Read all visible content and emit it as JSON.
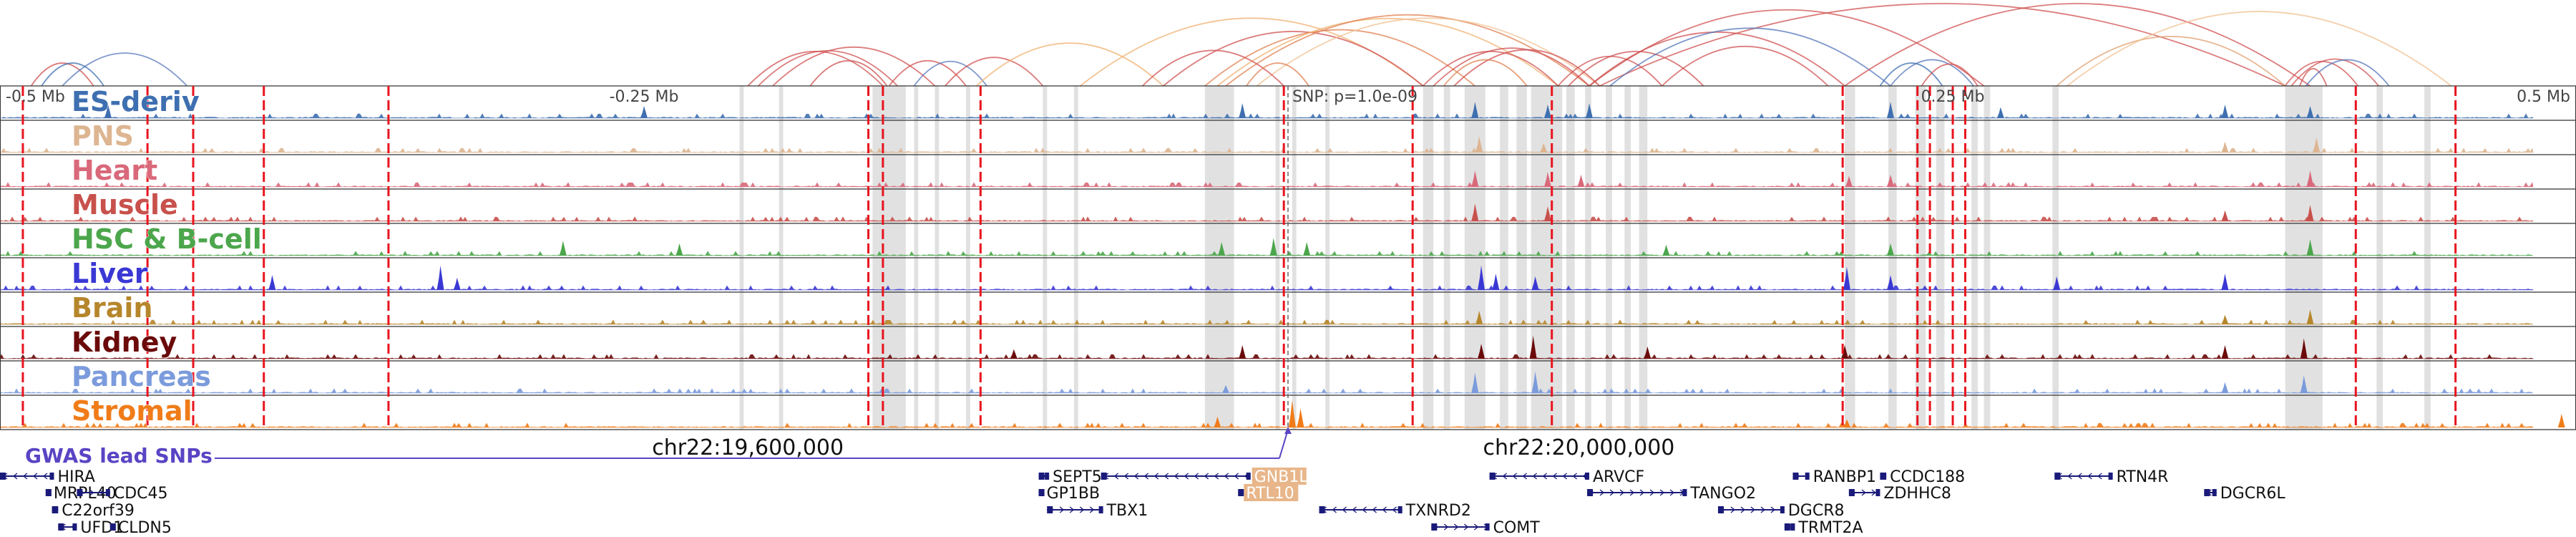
{
  "chart_data": {
    "type": "genome_track_plot",
    "title": "",
    "xlabel": "",
    "ylabel": "",
    "xlim": [
      19240000,
      20480000
    ],
    "offset_axis": {
      "labels": [
        "-0.5 Mb",
        "-0.25 Mb",
        "0.25 Mb",
        "0.5 Mb"
      ],
      "positions": [
        19240000,
        19550000,
        20180000,
        20480000
      ]
    },
    "lead_snp": {
      "position": 19860000,
      "label": "SNP: p=1.0e-09",
      "track_label": "GWAS lead SNPs"
    },
    "coordinate_labels": [
      {
        "label": "chr22:19,600,000",
        "position": 19600000
      },
      {
        "label": "chr22:20,000,000",
        "position": 20000000
      }
    ],
    "tracks": [
      {
        "name": "ES-deriv",
        "color": "#3e6fb0"
      },
      {
        "name": "PNS",
        "color": "#ddb591"
      },
      {
        "name": "Heart",
        "color": "#d9697a"
      },
      {
        "name": "Muscle",
        "color": "#c8514c"
      },
      {
        "name": "HSC & B-cell",
        "color": "#4ca64c"
      },
      {
        "name": "Liver",
        "color": "#3a38d4"
      },
      {
        "name": "Brain",
        "color": "#b6862b"
      },
      {
        "name": "Kidney",
        "color": "#6b0a0a"
      },
      {
        "name": "Pancreas",
        "color": "#7b9bdc"
      },
      {
        "name": "Stromal",
        "color": "#f07c19"
      }
    ],
    "red_dashed_boundaries": [
      19251000,
      19311000,
      19333000,
      19367000,
      19427000,
      19658000,
      19665000,
      19712000,
      19858000,
      19920000,
      19987000,
      20127000,
      20163000,
      20169000,
      20180000,
      20186000,
      20374000,
      20422000
    ],
    "highlight_regions": [
      [
        19596000,
        19598000
      ],
      [
        19615000,
        19617000
      ],
      [
        19660000,
        19668000
      ],
      [
        19668000,
        19676000
      ],
      [
        19680000,
        19682000
      ],
      [
        19690000,
        19692000
      ],
      [
        19705000,
        19707000
      ],
      [
        19742000,
        19744000
      ],
      [
        19757000,
        19759000
      ],
      [
        19820000,
        19826000
      ],
      [
        19826000,
        19831000
      ],
      [
        19831000,
        19834000
      ],
      [
        19854000,
        19856000
      ],
      [
        19862000,
        19864000
      ],
      [
        19878000,
        19880000
      ],
      [
        19925000,
        19930000
      ],
      [
        19935000,
        19938000
      ],
      [
        19945000,
        19950000
      ],
      [
        19950000,
        19955000
      ],
      [
        19962000,
        19966000
      ],
      [
        19970000,
        19975000
      ],
      [
        19977000,
        19980000
      ],
      [
        19980000,
        19984000
      ],
      [
        19984000,
        19988000
      ],
      [
        19988000,
        19992000
      ],
      [
        19994000,
        19998000
      ],
      [
        20003000,
        20006000
      ],
      [
        20013000,
        20016000
      ],
      [
        20022000,
        20025000
      ],
      [
        20029000,
        20033000
      ],
      [
        20128000,
        20133000
      ],
      [
        20149000,
        20153000
      ],
      [
        20162000,
        20167000
      ],
      [
        20172000,
        20176000
      ],
      [
        20189000,
        20192000
      ],
      [
        20195000,
        20198000
      ],
      [
        20228000,
        20231000
      ],
      [
        20340000,
        20347000
      ],
      [
        20347000,
        20352000
      ],
      [
        20352000,
        20358000
      ],
      [
        20384000,
        20387000
      ],
      [
        20407000,
        20410000
      ]
    ],
    "peaks": [
      {
        "track": "ES-deriv",
        "position": 19292000,
        "height": 0.5
      },
      {
        "track": "ES-deriv",
        "position": 19550000,
        "height": 0.45
      },
      {
        "track": "ES-deriv",
        "position": 19838000,
        "height": 0.55
      },
      {
        "track": "ES-deriv",
        "position": 19950000,
        "height": 0.6
      },
      {
        "track": "ES-deriv",
        "position": 19985000,
        "height": 0.5
      },
      {
        "track": "ES-deriv",
        "position": 20005000,
        "height": 0.55
      },
      {
        "track": "ES-deriv",
        "position": 20150000,
        "height": 0.6
      },
      {
        "track": "ES-deriv",
        "position": 20203000,
        "height": 0.4
      },
      {
        "track": "ES-deriv",
        "position": 20311000,
        "height": 0.5
      },
      {
        "track": "ES-deriv",
        "position": 20352000,
        "height": 0.45
      },
      {
        "track": "PNS",
        "position": 19952000,
        "height": 0.6
      },
      {
        "track": "PNS",
        "position": 19983000,
        "height": 0.35
      },
      {
        "track": "PNS",
        "position": 20311000,
        "height": 0.4
      },
      {
        "track": "PNS",
        "position": 20355000,
        "height": 0.55
      },
      {
        "track": "Heart",
        "position": 19950000,
        "height": 0.6
      },
      {
        "track": "Heart",
        "position": 19985000,
        "height": 0.55
      },
      {
        "track": "Heart",
        "position": 20001000,
        "height": 0.45
      },
      {
        "track": "Heart",
        "position": 20130000,
        "height": 0.4
      },
      {
        "track": "Heart",
        "position": 20150000,
        "height": 0.45
      },
      {
        "track": "Heart",
        "position": 20352000,
        "height": 0.6
      },
      {
        "track": "Muscle",
        "position": 19950000,
        "height": 0.65
      },
      {
        "track": "Muscle",
        "position": 19985000,
        "height": 0.55
      },
      {
        "track": "Muscle",
        "position": 20311000,
        "height": 0.4
      },
      {
        "track": "Muscle",
        "position": 20352000,
        "height": 0.6
      },
      {
        "track": "HSC & B-cell",
        "position": 19511000,
        "height": 0.55
      },
      {
        "track": "HSC & B-cell",
        "position": 19567000,
        "height": 0.45
      },
      {
        "track": "HSC & B-cell",
        "position": 19828000,
        "height": 0.5
      },
      {
        "track": "HSC & B-cell",
        "position": 19853000,
        "height": 0.65
      },
      {
        "track": "HSC & B-cell",
        "position": 19869000,
        "height": 0.5
      },
      {
        "track": "HSC & B-cell",
        "position": 20042000,
        "height": 0.4
      },
      {
        "track": "HSC & B-cell",
        "position": 20150000,
        "height": 0.45
      },
      {
        "track": "HSC & B-cell",
        "position": 20352000,
        "height": 0.6
      },
      {
        "track": "Liver",
        "position": 19371000,
        "height": 0.55
      },
      {
        "track": "Liver",
        "position": 19452000,
        "height": 0.9
      },
      {
        "track": "Liver",
        "position": 19460000,
        "height": 0.45
      },
      {
        "track": "Liver",
        "position": 19953000,
        "height": 0.9
      },
      {
        "track": "Liver",
        "position": 19960000,
        "height": 0.6
      },
      {
        "track": "Liver",
        "position": 19979000,
        "height": 0.5
      },
      {
        "track": "Liver",
        "position": 20129000,
        "height": 0.85
      },
      {
        "track": "Liver",
        "position": 20150000,
        "height": 0.55
      },
      {
        "track": "Liver",
        "position": 20230000,
        "height": 0.5
      },
      {
        "track": "Liver",
        "position": 20311000,
        "height": 0.6
      },
      {
        "track": "Brain",
        "position": 19952000,
        "height": 0.5
      },
      {
        "track": "Brain",
        "position": 20311000,
        "height": 0.35
      },
      {
        "track": "Brain",
        "position": 20352000,
        "height": 0.55
      },
      {
        "track": "Kidney",
        "position": 19728000,
        "height": 0.35
      },
      {
        "track": "Kidney",
        "position": 19838000,
        "height": 0.5
      },
      {
        "track": "Kidney",
        "position": 19953000,
        "height": 0.55
      },
      {
        "track": "Kidney",
        "position": 19978000,
        "height": 0.85
      },
      {
        "track": "Kidney",
        "position": 20033000,
        "height": 0.45
      },
      {
        "track": "Kidney",
        "position": 20128000,
        "height": 0.5
      },
      {
        "track": "Kidney",
        "position": 20311000,
        "height": 0.5
      },
      {
        "track": "Kidney",
        "position": 20349000,
        "height": 0.75
      },
      {
        "track": "Pancreas",
        "position": 19830000,
        "height": 0.3
      },
      {
        "track": "Pancreas",
        "position": 19950000,
        "height": 0.75
      },
      {
        "track": "Pancreas",
        "position": 19979000,
        "height": 0.8
      },
      {
        "track": "Pancreas",
        "position": 20311000,
        "height": 0.4
      },
      {
        "track": "Pancreas",
        "position": 20349000,
        "height": 0.65
      },
      {
        "track": "Stromal",
        "position": 19826000,
        "height": 0.4
      },
      {
        "track": "Stromal",
        "position": 19862000,
        "height": 1.0
      },
      {
        "track": "Stromal",
        "position": 19866000,
        "height": 0.7
      },
      {
        "track": "Stromal",
        "position": 20129000,
        "height": 0.3
      },
      {
        "track": "Stromal",
        "position": 20473000,
        "height": 0.5
      }
    ],
    "loops": [
      {
        "start": 19255000,
        "end": 19285000,
        "color": "#d05050"
      },
      {
        "start": 19260000,
        "end": 19290000,
        "color": "#3e6fb0"
      },
      {
        "start": 19270000,
        "end": 19330000,
        "color": "#5577bb"
      },
      {
        "start": 19600000,
        "end": 19665000,
        "color": "#d05050"
      },
      {
        "start": 19605000,
        "end": 19672000,
        "color": "#d05050"
      },
      {
        "start": 19612000,
        "end": 19690000,
        "color": "#d05050"
      },
      {
        "start": 19630000,
        "end": 19667000,
        "color": "#d05050"
      },
      {
        "start": 19668000,
        "end": 19705000,
        "color": "#d05050"
      },
      {
        "start": 19680000,
        "end": 19715000,
        "color": "#5577bb"
      },
      {
        "start": 19695000,
        "end": 19742000,
        "color": "#d05050"
      },
      {
        "start": 19710000,
        "end": 19800000,
        "color": "#f0b070"
      },
      {
        "start": 19760000,
        "end": 19925000,
        "color": "#f0b070"
      },
      {
        "start": 19800000,
        "end": 19925000,
        "color": "#d05050"
      },
      {
        "start": 19820000,
        "end": 19950000,
        "color": "#e08050"
      },
      {
        "start": 19826000,
        "end": 19990000,
        "color": "#f0b070"
      },
      {
        "start": 19830000,
        "end": 20005000,
        "color": "#e08050"
      },
      {
        "start": 19845000,
        "end": 20010000,
        "color": "#f0c090"
      },
      {
        "start": 19790000,
        "end": 19858000,
        "color": "#d05050"
      },
      {
        "start": 19840000,
        "end": 19870000,
        "color": "#e08050"
      },
      {
        "start": 19925000,
        "end": 19990000,
        "color": "#d05050"
      },
      {
        "start": 19930000,
        "end": 20005000,
        "color": "#d05050"
      },
      {
        "start": 19940000,
        "end": 20010000,
        "color": "#d05050"
      },
      {
        "start": 19935000,
        "end": 19975000,
        "color": "#e08050"
      },
      {
        "start": 19990000,
        "end": 20040000,
        "color": "#d05050"
      },
      {
        "start": 19995000,
        "end": 20060000,
        "color": "#d05050"
      },
      {
        "start": 20005000,
        "end": 20128000,
        "color": "#d05050"
      },
      {
        "start": 20005000,
        "end": 20195000,
        "color": "#d05050"
      },
      {
        "start": 20010000,
        "end": 20340000,
        "color": "#d05050"
      },
      {
        "start": 20015000,
        "end": 20150000,
        "color": "#5577bb"
      },
      {
        "start": 20040000,
        "end": 20120000,
        "color": "#d05050"
      },
      {
        "start": 20128000,
        "end": 20352000,
        "color": "#d05050"
      },
      {
        "start": 20145000,
        "end": 20175000,
        "color": "#3e6fb0"
      },
      {
        "start": 20150000,
        "end": 20190000,
        "color": "#5577bb"
      },
      {
        "start": 20165000,
        "end": 20192000,
        "color": "#d05050"
      },
      {
        "start": 20230000,
        "end": 20340000,
        "color": "#e0a070"
      },
      {
        "start": 20235000,
        "end": 20420000,
        "color": "#f0c090"
      },
      {
        "start": 20340000,
        "end": 20375000,
        "color": "#d05050"
      },
      {
        "start": 20343000,
        "end": 20385000,
        "color": "#d05050"
      },
      {
        "start": 20347000,
        "end": 20360000,
        "color": "#d05050"
      },
      {
        "start": 20350000,
        "end": 20390000,
        "color": "#5577bb"
      }
    ],
    "genes": [
      {
        "name": "HIRA",
        "start": 19240000,
        "end": 19266000,
        "row": 0,
        "strand": "-",
        "color": "#1a1a7a"
      },
      {
        "name": "MRPL40",
        "start": 19262000,
        "end": 19264000,
        "row": 1,
        "strand": "+",
        "color": "#1a1a7a"
      },
      {
        "name": "CDC45",
        "start": 19277000,
        "end": 19293000,
        "row": 1,
        "strand": "+",
        "color": "#1a1a7a"
      },
      {
        "name": "C22orf39",
        "start": 19265000,
        "end": 19268000,
        "row": 2,
        "strand": "-",
        "color": "#1a1a7a"
      },
      {
        "name": "UFD1",
        "start": 19268000,
        "end": 19277000,
        "row": 3,
        "strand": "-",
        "color": "#1a1a7a"
      },
      {
        "name": "CLDN5",
        "start": 19293000,
        "end": 19295000,
        "row": 3,
        "strand": "-",
        "color": "#1a1a7a"
      },
      {
        "name": "SEPT5",
        "start": 19740000,
        "end": 19745000,
        "row": 0,
        "strand": "+",
        "color": "#1a1a7a"
      },
      {
        "name": "GP1BB",
        "start": 19740000,
        "end": 19741000,
        "row": 1,
        "strand": "+",
        "color": "#1a1a7a"
      },
      {
        "name": "TBX1",
        "start": 19744000,
        "end": 19771000,
        "row": 2,
        "strand": "+",
        "color": "#1a1a7a"
      },
      {
        "name": "GNB1L",
        "start": 19770000,
        "end": 19842000,
        "row": 0,
        "strand": "-",
        "color": "#1a1a7a"
      },
      {
        "name": "RTL10",
        "start": 19836000,
        "end": 19838000,
        "row": 1,
        "strand": "-",
        "color": "#1a1a7a"
      },
      {
        "name": "TXNRD2",
        "start": 19875000,
        "end": 19915000,
        "row": 2,
        "strand": "-",
        "color": "#1a1a7a"
      },
      {
        "name": "COMT",
        "start": 19929000,
        "end": 19957000,
        "row": 3,
        "strand": "+",
        "color": "#1a1a7a"
      },
      {
        "name": "ARVCF",
        "start": 19957000,
        "end": 20005000,
        "row": 0,
        "strand": "-",
        "color": "#1a1a7a"
      },
      {
        "name": "TANGO2",
        "start": 20004000,
        "end": 20052000,
        "row": 1,
        "strand": "+",
        "color": "#1a1a7a"
      },
      {
        "name": "RANBP1",
        "start": 20103000,
        "end": 20111000,
        "row": 0,
        "strand": "+",
        "color": "#1a1a7a"
      },
      {
        "name": "DGCR8",
        "start": 20067000,
        "end": 20099000,
        "row": 2,
        "strand": "+",
        "color": "#1a1a7a"
      },
      {
        "name": "ZDHHC8",
        "start": 20130000,
        "end": 20145000,
        "row": 1,
        "strand": "+",
        "color": "#1a1a7a"
      },
      {
        "name": "CCDC188",
        "start": 20145000,
        "end": 20148000,
        "row": 0,
        "strand": "-",
        "color": "#1a1a7a"
      },
      {
        "name": "TRMT2A",
        "start": 20099000,
        "end": 20104000,
        "row": 3,
        "strand": "-",
        "color": "#1a1a7a"
      },
      {
        "name": "RTN4R",
        "start": 20229000,
        "end": 20257000,
        "row": 0,
        "strand": "-",
        "color": "#1a1a7a"
      },
      {
        "name": "DGCR6L",
        "start": 20301000,
        "end": 20307000,
        "row": 1,
        "strand": "-",
        "color": "#1a1a7a"
      }
    ]
  }
}
